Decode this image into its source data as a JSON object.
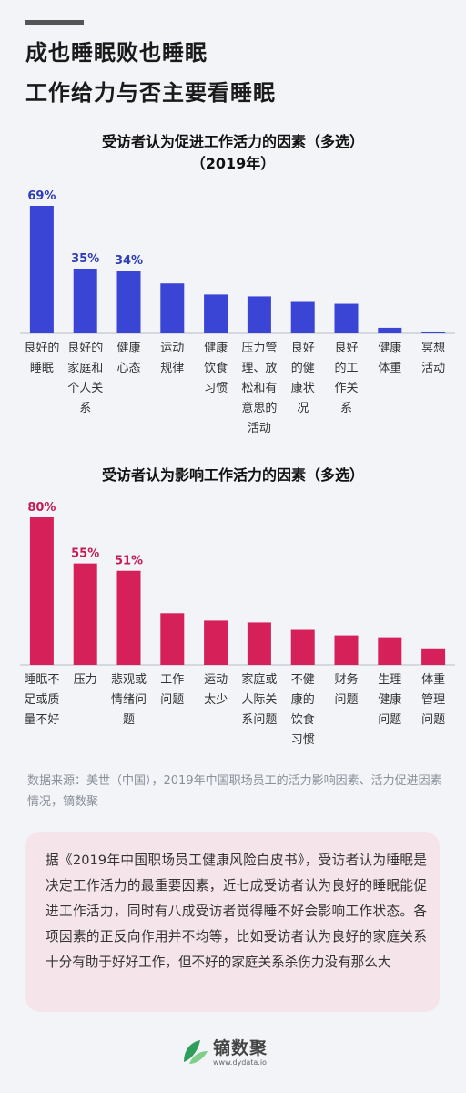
{
  "header": {
    "line1": "成也睡眠败也睡眠",
    "line2": "工作给力与否主要看睡眠"
  },
  "chart_data": [
    {
      "type": "bar",
      "title": "受访者认为促进工作活力的因素（多选）",
      "subtitle": "（2019年）",
      "color": "#3a45d6",
      "label_color": "#2f3db5",
      "categories": [
        "良好的睡眠",
        "良好的家庭和个人关系",
        "健康心态",
        "运动规律",
        "健康饮食习惯",
        "压力管理、放松和有意思的活动",
        "良好的健康状况",
        "良好的工作关系",
        "健康体重",
        "冥想活动"
      ],
      "category_lines": [
        [
          "良好的",
          "睡眠"
        ],
        [
          "良好的",
          "家庭和",
          "个人关",
          "系"
        ],
        [
          "健康",
          "心态"
        ],
        [
          "运动",
          "规律"
        ],
        [
          "健康",
          "饮食",
          "习惯"
        ],
        [
          "压力管",
          "理、放",
          "松和有",
          "意思的",
          "活动"
        ],
        [
          "良好",
          "的健",
          "康状",
          "况"
        ],
        [
          "良好",
          "的工",
          "作关",
          "系"
        ],
        [
          "健康",
          "体重"
        ],
        [
          "冥想",
          "活动"
        ]
      ],
      "values": [
        69,
        35,
        34,
        27,
        21,
        20,
        17,
        16,
        3,
        1
      ],
      "data_labels": [
        "69%",
        "35%",
        "34%",
        "",
        "",
        "",
        "",
        "",
        "",
        ""
      ]
    },
    {
      "type": "bar",
      "title": "受访者认为影响工作活力的因素（多选）",
      "color": "#d6205a",
      "label_color": "#c41c52",
      "categories": [
        "睡眠不足或质量不好",
        "压力",
        "悲观或情绪问题",
        "工作问题",
        "运动太少",
        "家庭或人际关系问题",
        "不健康的饮食习惯",
        "财务问题",
        "生理健康问题",
        "体重管理问题"
      ],
      "category_lines": [
        [
          "睡眠不",
          "足或质",
          "量不好"
        ],
        [
          "压力"
        ],
        [
          "悲观或",
          "情绪问",
          "题"
        ],
        [
          "工作",
          "问题"
        ],
        [
          "运动",
          "太少"
        ],
        [
          "家庭或",
          "人际关",
          "系问题"
        ],
        [
          "不健",
          "康的",
          "饮食",
          "习惯"
        ],
        [
          "财务",
          "问题"
        ],
        [
          "生理",
          "健康",
          "问题"
        ],
        [
          "体重",
          "管理",
          "问题"
        ]
      ],
      "values": [
        80,
        55,
        51,
        28,
        24,
        23,
        19,
        16,
        15,
        9
      ],
      "data_labels": [
        "80%",
        "55%",
        "51%",
        "",
        "",
        "",
        "",
        "",
        "",
        ""
      ]
    }
  ],
  "source": "数据来源：美世（中国），2019年中国职场员工的活力影响因素、活力促进因素情况，镝数聚",
  "summary": "据《2019年中国职场员工健康风险白皮书》，受访者认为睡眠是决定工作活力的最重要因素，近七成受访者认为良好的睡眠能促进工作活力，同时有八成受访者觉得睡不好会影响工作状态。各项因素的正反向作用并不均等，比如受访者认为良好的家庭关系十分有助于好好工作，但不好的家庭关系杀伤力没有那么大",
  "logo": {
    "name": "镝数聚",
    "url": "www.dydata.io",
    "icon": "leaf-logo-icon",
    "colors": [
      "#2e9e5b",
      "#7fcf8a"
    ]
  }
}
